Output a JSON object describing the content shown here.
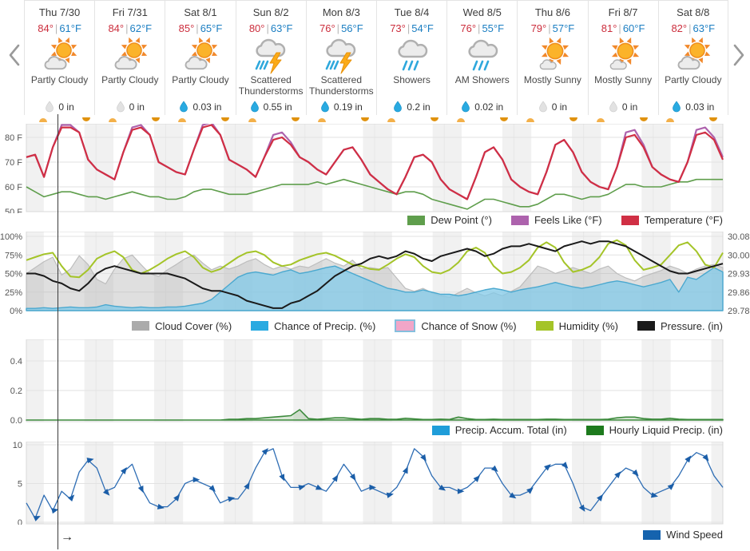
{
  "pan_arrow": "→",
  "forecast_days": [
    {
      "name": "Thu 7/30",
      "high": "84°",
      "sep": "|",
      "low": "61°F",
      "condition": "Partly Cloudy",
      "icon": "partly-cloudy",
      "precip_amount": "0 in",
      "precip_wet": false
    },
    {
      "name": "Fri 7/31",
      "high": "84°",
      "sep": "|",
      "low": "62°F",
      "condition": "Partly Cloudy",
      "icon": "partly-cloudy",
      "precip_amount": "0 in",
      "precip_wet": false
    },
    {
      "name": "Sat 8/1",
      "high": "85°",
      "sep": "|",
      "low": "65°F",
      "condition": "Partly Cloudy",
      "icon": "partly-cloudy",
      "precip_amount": "0.03 in",
      "precip_wet": true
    },
    {
      "name": "Sun 8/2",
      "high": "80°",
      "sep": "|",
      "low": "63°F",
      "condition": "Scattered Thunderstorms",
      "icon": "tstorm",
      "precip_amount": "0.55 in",
      "precip_wet": true
    },
    {
      "name": "Mon 8/3",
      "high": "76°",
      "sep": "|",
      "low": "56°F",
      "condition": "Scattered Thunderstorms",
      "icon": "tstorm",
      "precip_amount": "0.19 in",
      "precip_wet": true
    },
    {
      "name": "Tue 8/4",
      "high": "73°",
      "sep": "|",
      "low": "54°F",
      "condition": "Showers",
      "icon": "showers",
      "precip_amount": "0.2 in",
      "precip_wet": true
    },
    {
      "name": "Wed 8/5",
      "high": "76°",
      "sep": "|",
      "low": "55°F",
      "condition": "AM Showers",
      "icon": "showers",
      "precip_amount": "0.02 in",
      "precip_wet": true
    },
    {
      "name": "Thu 8/6",
      "high": "79°",
      "sep": "|",
      "low": "57°F",
      "condition": "Mostly Sunny",
      "icon": "mostly-sunny",
      "precip_amount": "0 in",
      "precip_wet": false
    },
    {
      "name": "Fri 8/7",
      "high": "81°",
      "sep": "|",
      "low": "60°F",
      "condition": "Mostly Sunny",
      "icon": "mostly-sunny",
      "precip_amount": "0 in",
      "precip_wet": false
    },
    {
      "name": "Sat 8/8",
      "high": "82°",
      "sep": "|",
      "low": "63°F",
      "condition": "Partly Cloudy",
      "icon": "partly-cloudy",
      "precip_amount": "0.03 in",
      "precip_wet": true
    }
  ],
  "chart_data": [
    {
      "type": "line",
      "title": "Temperature chart",
      "x": "10 days (Thu 7/30 - Sat 8/8), 3-hour steps",
      "y_ticks": [
        "80 F",
        "70 F",
        "60 F",
        "50 F"
      ],
      "ylim": [
        50,
        85.5
      ],
      "legend_position": "bottom-right",
      "grid": true,
      "series": [
        {
          "name": "Dew Point (°)",
          "color": "#5f9e4c",
          "values": [
            60,
            58,
            56,
            57,
            58,
            58,
            57,
            56,
            56,
            55,
            56,
            57,
            58,
            57,
            56,
            56,
            55,
            55,
            56,
            58,
            59,
            59,
            58,
            57,
            57,
            57,
            58,
            59,
            60,
            61,
            61,
            61,
            61,
            62,
            61,
            62,
            63,
            62,
            61,
            60,
            59,
            58,
            57,
            58,
            58,
            57,
            55,
            54,
            53,
            52,
            51,
            53,
            55,
            55,
            54,
            53,
            52,
            52,
            53,
            55,
            57,
            57,
            56,
            55,
            56,
            56,
            57,
            59,
            61,
            61,
            60,
            60,
            60,
            61,
            62,
            62,
            63,
            63,
            63,
            63
          ]
        },
        {
          "name": "Feels Like (°F)",
          "color": "#ad62ad",
          "values": [
            72,
            73,
            64,
            76,
            85,
            85,
            82,
            71,
            67,
            65,
            63,
            74,
            84,
            85,
            81,
            70,
            68,
            66,
            65,
            75,
            85,
            86,
            81,
            71,
            69,
            67,
            64,
            72,
            81,
            82,
            78,
            72,
            70,
            67,
            65,
            70,
            75,
            76,
            71,
            65,
            62,
            59,
            57,
            64,
            72,
            73,
            70,
            63,
            59,
            57,
            55,
            64,
            74,
            76,
            71,
            63,
            60,
            58,
            57,
            66,
            77,
            79,
            74,
            66,
            62,
            60,
            59,
            68,
            82,
            83,
            77,
            68,
            65,
            63,
            62,
            70,
            83,
            84,
            80,
            72
          ]
        },
        {
          "name": "Temperature (°F)",
          "color": "#d02f44",
          "values": [
            72,
            73,
            64,
            76,
            84,
            84,
            82,
            71,
            67,
            65,
            63,
            74,
            83,
            84,
            81,
            70,
            68,
            66,
            65,
            75,
            84,
            85,
            81,
            71,
            69,
            67,
            64,
            72,
            79,
            80,
            77,
            72,
            70,
            67,
            65,
            70,
            75,
            76,
            71,
            65,
            62,
            59,
            57,
            64,
            72,
            73,
            70,
            63,
            59,
            57,
            55,
            64,
            74,
            76,
            71,
            63,
            60,
            58,
            57,
            66,
            77,
            79,
            74,
            66,
            62,
            60,
            59,
            68,
            80,
            81,
            76,
            68,
            65,
            63,
            62,
            70,
            81,
            82,
            79,
            71
          ]
        }
      ]
    },
    {
      "type": "area+line",
      "title": "Cloud / Precip chance / Humidity / Pressure chart",
      "y_ticks_left": [
        "100%",
        "75%",
        "50%",
        "25%",
        "0%"
      ],
      "y_ticks_right": [
        "30.08",
        "30.00",
        "29.93",
        "29.86",
        "29.78"
      ],
      "ylim_left": [
        0,
        100
      ],
      "ylim_right": [
        29.78,
        30.08
      ],
      "legend_position": "bottom-right",
      "series": [
        {
          "name": "Cloud Cover (%)",
          "color": "#ababab",
          "style": "area",
          "values": [
            50,
            58,
            66,
            72,
            48,
            56,
            74,
            62,
            42,
            36,
            56,
            70,
            75,
            62,
            50,
            46,
            55,
            62,
            70,
            75,
            64,
            55,
            60,
            56,
            60,
            66,
            70,
            62,
            56,
            60,
            56,
            60,
            58,
            64,
            70,
            64,
            60,
            68,
            56,
            58,
            56,
            58,
            44,
            30,
            26,
            30,
            24,
            20,
            18,
            24,
            30,
            24,
            20,
            24,
            20,
            26,
            32,
            46,
            60,
            56,
            50,
            54,
            58,
            54,
            50,
            56,
            60,
            50,
            44,
            40,
            46,
            50,
            54,
            60,
            56,
            50,
            56,
            60,
            62,
            58
          ]
        },
        {
          "name": "Chance of Precip. (%)",
          "color": "#29aae1",
          "style": "area",
          "values": [
            3,
            3,
            4,
            3,
            4,
            5,
            4,
            4,
            5,
            8,
            6,
            5,
            4,
            5,
            4,
            4,
            5,
            5,
            6,
            8,
            10,
            15,
            25,
            35,
            45,
            50,
            52,
            50,
            48,
            52,
            55,
            50,
            52,
            55,
            58,
            60,
            55,
            50,
            45,
            40,
            35,
            30,
            28,
            25,
            25,
            28,
            25,
            22,
            22,
            20,
            22,
            25,
            28,
            30,
            28,
            25,
            28,
            30,
            32,
            35,
            38,
            35,
            32,
            30,
            32,
            35,
            38,
            40,
            38,
            35,
            32,
            35,
            38,
            42,
            25,
            45,
            42,
            50,
            58,
            52
          ]
        },
        {
          "name": "Chance of Snow (%)",
          "color": "#f2a6c8",
          "border": "#85bfdd",
          "style": "area",
          "visible": false,
          "values": [
            0,
            0,
            0,
            0,
            0,
            0,
            0,
            0,
            0,
            0,
            0,
            0,
            0,
            0,
            0,
            0,
            0,
            0,
            0,
            0,
            0,
            0,
            0,
            0,
            0,
            0,
            0,
            0,
            0,
            0,
            0,
            0,
            0,
            0,
            0,
            0,
            0,
            0,
            0,
            0,
            0,
            0,
            0,
            0,
            0,
            0,
            0,
            0,
            0,
            0,
            0,
            0,
            0,
            0,
            0,
            0,
            0,
            0,
            0,
            0,
            0,
            0,
            0,
            0,
            0,
            0,
            0,
            0,
            0,
            0,
            0,
            0,
            0,
            0,
            0,
            0,
            0,
            0,
            0,
            0
          ]
        },
        {
          "name": "Humidity (%)",
          "color": "#a4c428",
          "style": "line",
          "values": [
            68,
            72,
            76,
            78,
            60,
            46,
            45,
            55,
            70,
            76,
            80,
            72,
            55,
            50,
            55,
            62,
            70,
            76,
            80,
            72,
            58,
            52,
            56,
            64,
            72,
            78,
            80,
            75,
            65,
            60,
            62,
            68,
            72,
            76,
            78,
            74,
            68,
            62,
            60,
            56,
            55,
            62,
            70,
            76,
            72,
            60,
            52,
            50,
            55,
            65,
            80,
            85,
            78,
            60,
            50,
            52,
            58,
            68,
            85,
            92,
            85,
            65,
            52,
            55,
            60,
            72,
            90,
            95,
            88,
            68,
            55,
            58,
            62,
            75,
            88,
            92,
            80,
            62,
            58,
            78
          ]
        },
        {
          "name": "Pressure. (in)",
          "color": "#1a1a1a",
          "style": "line",
          "axis": "right",
          "values": [
            29.93,
            29.93,
            29.92,
            29.9,
            29.89,
            29.87,
            29.86,
            29.89,
            29.93,
            29.95,
            29.96,
            29.95,
            29.94,
            29.93,
            29.93,
            29.93,
            29.93,
            29.92,
            29.91,
            29.89,
            29.87,
            29.86,
            29.86,
            29.85,
            29.84,
            29.82,
            29.81,
            29.8,
            29.79,
            29.79,
            29.81,
            29.82,
            29.84,
            29.86,
            29.89,
            29.92,
            29.94,
            29.96,
            29.97,
            29.99,
            30.0,
            29.99,
            30.0,
            30.02,
            30.01,
            29.99,
            29.98,
            30.0,
            30.01,
            30.02,
            30.03,
            30.02,
            30.0,
            30.01,
            30.03,
            30.04,
            30.04,
            30.05,
            30.04,
            30.03,
            30.02,
            30.04,
            30.05,
            30.06,
            30.05,
            30.06,
            30.06,
            30.05,
            30.04,
            30.02,
            30.0,
            29.98,
            29.96,
            29.94,
            29.93,
            29.93,
            29.94,
            29.95,
            29.96,
            29.97
          ]
        }
      ]
    },
    {
      "type": "area",
      "title": "Precipitation chart",
      "y_ticks": [
        "0.4",
        "0.2",
        "0.0"
      ],
      "ylim": [
        0,
        0.55
      ],
      "legend_position": "bottom-right",
      "series": [
        {
          "name": "Precip. Accum. Total (in)",
          "color": "#1f9dd9",
          "style": "area",
          "visible": false,
          "values": [
            0,
            0,
            0,
            0,
            0,
            0,
            0,
            0,
            0,
            0,
            0,
            0,
            0,
            0,
            0,
            0,
            0,
            0,
            0,
            0,
            0,
            0,
            0,
            0,
            0,
            0,
            0,
            0,
            0,
            0,
            0,
            0,
            0,
            0,
            0,
            0,
            0,
            0,
            0,
            0,
            0,
            0,
            0,
            0,
            0,
            0,
            0,
            0,
            0,
            0,
            0,
            0,
            0,
            0,
            0,
            0,
            0,
            0,
            0,
            0,
            0,
            0,
            0,
            0,
            0,
            0,
            0,
            0,
            0,
            0,
            0,
            0,
            0,
            0,
            0,
            0,
            0,
            0,
            0,
            0
          ]
        },
        {
          "name": "Hourly Liquid Precip. (in)",
          "color": "#1d7a1d",
          "style": "area",
          "values": [
            0,
            0,
            0,
            0,
            0,
            0,
            0,
            0,
            0,
            0,
            0,
            0,
            0,
            0,
            0,
            0,
            0,
            0,
            0,
            0,
            0,
            0,
            0,
            0.005,
            0.005,
            0.01,
            0.01,
            0.015,
            0.02,
            0.025,
            0.03,
            0.07,
            0.01,
            0.005,
            0.01,
            0.015,
            0.015,
            0.01,
            0.005,
            0.01,
            0.01,
            0.005,
            0.005,
            0.012,
            0.008,
            0.004,
            0.004,
            0.006,
            0.004,
            0.02,
            0.01,
            0.004,
            0.004,
            0.006,
            0.004,
            0.004,
            0.004,
            0.004,
            0.004,
            0.006,
            0.006,
            0.004,
            0.004,
            0.004,
            0.004,
            0.004,
            0.006,
            0.015,
            0.02,
            0.02,
            0.01,
            0.006,
            0.006,
            0.012,
            0.006,
            0.004,
            0.004,
            0.004,
            0.004,
            0.004
          ]
        }
      ]
    },
    {
      "type": "line",
      "title": "Wind chart",
      "y_ticks": [
        "10",
        "5",
        "0"
      ],
      "ylim": [
        0,
        10.4
      ],
      "legend_position": "bottom-right",
      "series": [
        {
          "name": "Wind Speed",
          "color": "#1563ae",
          "style": "line-arrows",
          "values": [
            2.5,
            0.5,
            3.5,
            1.5,
            4,
            3,
            6.5,
            8,
            7,
            4,
            4.5,
            6.5,
            7.5,
            4.5,
            2.5,
            2,
            2,
            3,
            5,
            5.5,
            5,
            4.5,
            2.5,
            3,
            3,
            4.5,
            7,
            9,
            9.5,
            6,
            4.5,
            4.5,
            5,
            4.5,
            4,
            5.5,
            7.5,
            6,
            4,
            4.5,
            4,
            3.5,
            4.5,
            6.5,
            9.5,
            8.5,
            6,
            4.5,
            4.5,
            4,
            4.5,
            5.5,
            7,
            7,
            5,
            3.5,
            3.5,
            4,
            5.5,
            7,
            7.5,
            7.5,
            5,
            2,
            1.5,
            3,
            4.5,
            6,
            7,
            6.5,
            4.5,
            3.5,
            4,
            4.5,
            6,
            8,
            9,
            8.5,
            6,
            4.5
          ]
        }
      ]
    }
  ]
}
